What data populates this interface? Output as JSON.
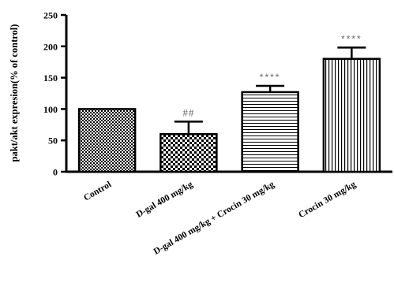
{
  "chart_data": {
    "type": "bar",
    "title": "",
    "xlabel": "",
    "ylabel": "pakt/akt expresion(% of control)",
    "ylim": [
      0,
      250
    ],
    "yticks": [
      0,
      50,
      100,
      150,
      200,
      250
    ],
    "grid": false,
    "categories": [
      "Control",
      "D-gal 400 mg/kg",
      "D-gal 400 mg/kg + Crocin 30 mg/kg",
      "Crocin 30 mg/kg"
    ],
    "values": [
      100,
      60,
      127,
      180
    ],
    "errors": [
      0,
      20,
      10,
      18
    ],
    "annotations": [
      "",
      "##",
      "****",
      "****"
    ],
    "patterns": [
      "checkerboard-fine",
      "checkerboard-coarse",
      "horizontal-lines",
      "vertical-lines"
    ]
  }
}
